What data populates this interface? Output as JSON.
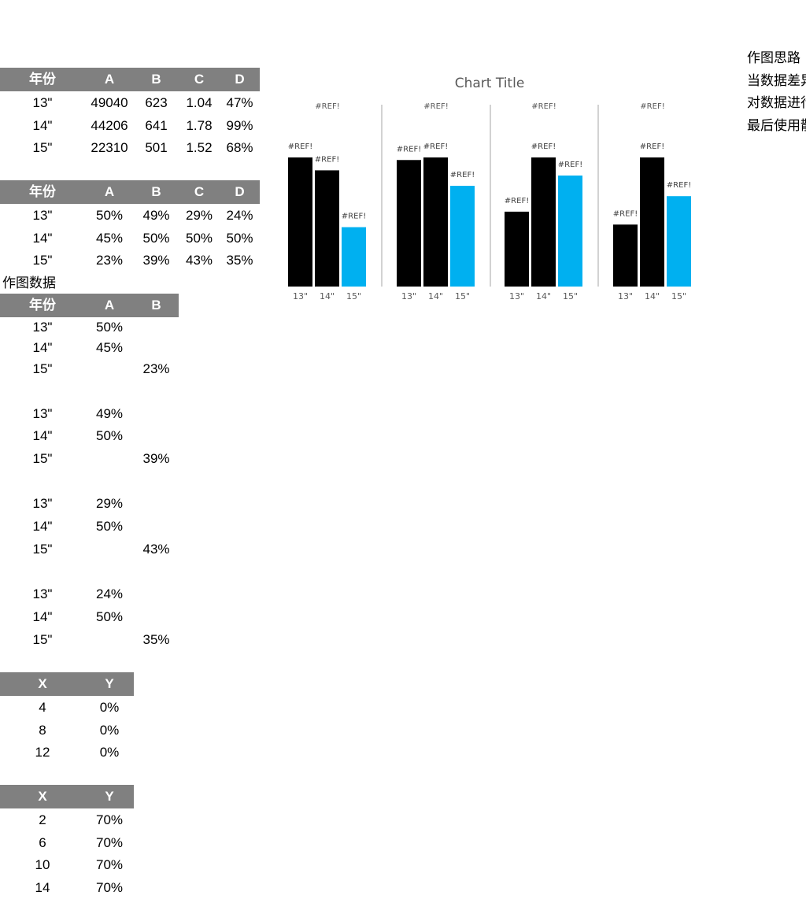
{
  "table1": {
    "headers": [
      "年份",
      "A",
      "B",
      "C",
      "D"
    ],
    "rows": [
      [
        "13\"",
        "49040",
        "623",
        "1.04",
        "47%"
      ],
      [
        "14\"",
        "44206",
        "641",
        "1.78",
        "99%"
      ],
      [
        "15\"",
        "22310",
        "501",
        "1.52",
        "68%"
      ]
    ]
  },
  "table2": {
    "headers": [
      "年份",
      "A",
      "B",
      "C",
      "D"
    ],
    "rows": [
      [
        "13\"",
        "50%",
        "49%",
        "29%",
        "24%"
      ],
      [
        "14\"",
        "45%",
        "50%",
        "50%",
        "50%"
      ],
      [
        "15\"",
        "23%",
        "39%",
        "43%",
        "35%"
      ]
    ]
  },
  "plot_data": {
    "caption": "作图数据",
    "headers": [
      "年份",
      "A",
      "B"
    ],
    "groups": [
      [
        [
          "13\"",
          "50%",
          ""
        ],
        [
          "14\"",
          "45%",
          ""
        ],
        [
          "15\"",
          "",
          "23%"
        ]
      ],
      [
        [
          "13\"",
          "49%",
          ""
        ],
        [
          "14\"",
          "50%",
          ""
        ],
        [
          "15\"",
          "",
          "39%"
        ]
      ],
      [
        [
          "13\"",
          "29%",
          ""
        ],
        [
          "14\"",
          "50%",
          ""
        ],
        [
          "15\"",
          "",
          "43%"
        ]
      ],
      [
        [
          "13\"",
          "24%",
          ""
        ],
        [
          "14\"",
          "50%",
          ""
        ],
        [
          "15\"",
          "",
          "35%"
        ]
      ]
    ]
  },
  "xy1": {
    "headers": [
      "X",
      "Y"
    ],
    "rows": [
      [
        "4",
        "0%"
      ],
      [
        "8",
        "0%"
      ],
      [
        "12",
        "0%"
      ]
    ]
  },
  "xy2": {
    "headers": [
      "X",
      "Y"
    ],
    "rows": [
      [
        "2",
        "70%"
      ],
      [
        "6",
        "70%"
      ],
      [
        "10",
        "70%"
      ],
      [
        "14",
        "70%"
      ]
    ]
  },
  "notes": [
    "作图思路",
    "当数据差异",
    "对数据进行",
    "最后使用散"
  ],
  "chart_data": {
    "type": "bar",
    "title": "Chart Title",
    "categories": [
      "13\"",
      "14\"",
      "15\""
    ],
    "panels": [
      {
        "label": "#REF!",
        "values": [
          50,
          45,
          23
        ]
      },
      {
        "label": "#REF!",
        "values": [
          49,
          50,
          39
        ]
      },
      {
        "label": "#REF!",
        "values": [
          29,
          50,
          43
        ]
      },
      {
        "label": "#REF!",
        "values": [
          24,
          50,
          35
        ]
      }
    ],
    "data_label": "#REF!",
    "ylim": [
      0,
      50
    ],
    "colors": {
      "highlight": "#00B0F0",
      "normal": "#000000",
      "separator": "#A6A6A6",
      "text": "#595959"
    }
  }
}
